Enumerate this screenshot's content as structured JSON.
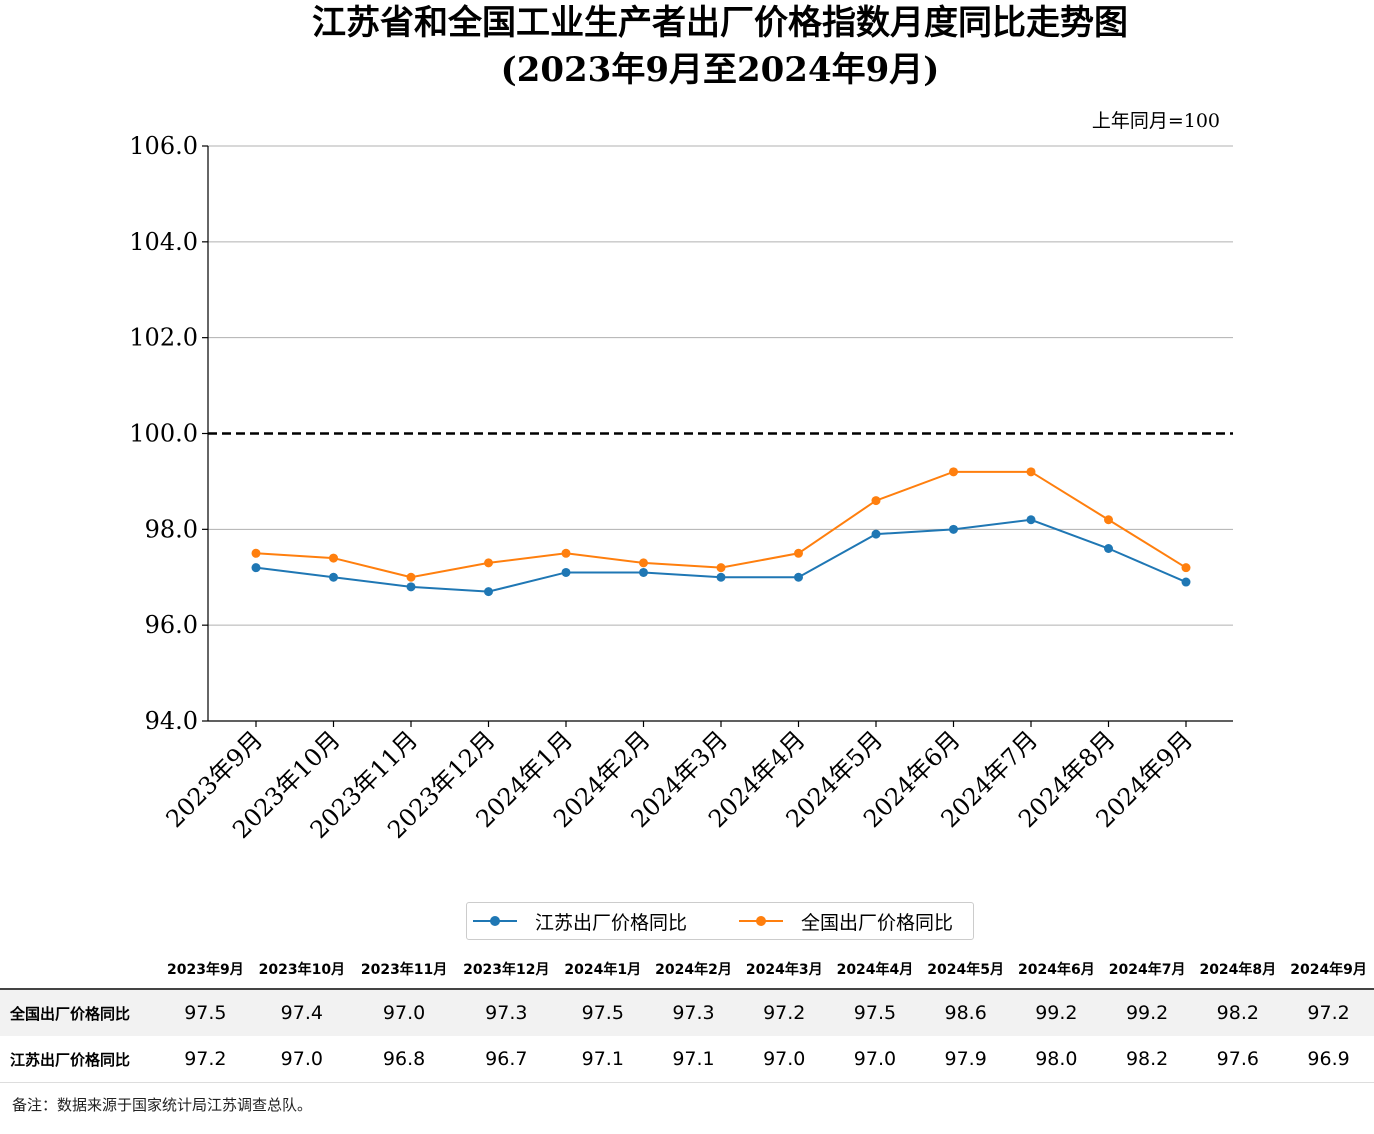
{
  "title": "江苏省和全国工业生产者出厂价格指数月度同比走势图",
  "subtitle": "(2023年9月至2024年9月)",
  "unit_note": "上年同月=100",
  "footnote": "备注：数据来源于国家统计局江苏调查总队。",
  "colors": {
    "jiangsu": "#1f77b4",
    "national": "#ff7f0e",
    "reference": "#000000",
    "grid": "#b0b0b0"
  },
  "chart_data": {
    "type": "line",
    "categories": [
      "2023年9月",
      "2023年10月",
      "2023年11月",
      "2023年12月",
      "2024年1月",
      "2024年2月",
      "2024年3月",
      "2024年4月",
      "2024年5月",
      "2024年6月",
      "2024年7月",
      "2024年8月",
      "2024年9月"
    ],
    "series": [
      {
        "name": "江苏出厂价格同比",
        "color": "#1f77b4",
        "values": [
          97.2,
          97.0,
          96.8,
          96.7,
          97.1,
          97.1,
          97.0,
          97.0,
          97.9,
          98.0,
          98.2,
          97.6,
          96.9
        ]
      },
      {
        "name": "全国出厂价格同比",
        "color": "#ff7f0e",
        "values": [
          97.5,
          97.4,
          97.0,
          97.3,
          97.5,
          97.3,
          97.2,
          97.5,
          98.6,
          99.2,
          99.2,
          98.2,
          97.2
        ]
      }
    ],
    "ylim": [
      94.0,
      106.0
    ],
    "yticks": [
      "94.0",
      "96.0",
      "98.0",
      "100.0",
      "102.0",
      "104.0",
      "106.0"
    ],
    "reference_line": 100.0,
    "grid": "horizontal",
    "legend": "bottom-center"
  },
  "table": {
    "headers": [
      "2023年9月",
      "2023年10月",
      "2023年11月",
      "2023年12月",
      "2024年1月",
      "2024年2月",
      "2024年3月",
      "2024年4月",
      "2024年5月",
      "2024年6月",
      "2024年7月",
      "2024年8月",
      "2024年9月"
    ],
    "rows": [
      {
        "label": "全国出厂价格同比",
        "values": [
          "97.5",
          "97.4",
          "97.0",
          "97.3",
          "97.5",
          "97.3",
          "97.2",
          "97.5",
          "98.6",
          "99.2",
          "99.2",
          "98.2",
          "97.2"
        ]
      },
      {
        "label": "江苏出厂价格同比",
        "values": [
          "97.2",
          "97.0",
          "96.8",
          "96.7",
          "97.1",
          "97.1",
          "97.0",
          "97.0",
          "97.9",
          "98.0",
          "98.2",
          "97.6",
          "96.9"
        ]
      }
    ]
  }
}
